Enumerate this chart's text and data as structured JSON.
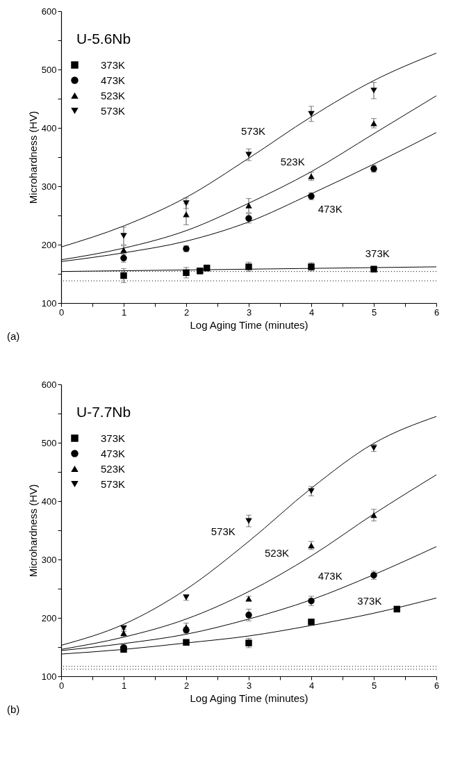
{
  "chart_data": [
    {
      "type": "scatter",
      "title": "U-5.6Nb",
      "xlabel": "Log Aging Time (minutes)",
      "ylabel": "Microhardness (HV)",
      "xlim": [
        0,
        6
      ],
      "ylim": [
        100,
        600
      ],
      "xticks": [
        0,
        {
          "value": 0.5,
          "label": null
        },
        1,
        {
          "value": 1.5,
          "label": null
        },
        2,
        {
          "value": 2.5,
          "label": null
        },
        3,
        {
          "value": 3.5,
          "label": null
        },
        4,
        {
          "value": 4.5,
          "label": null
        },
        5,
        {
          "value": 5.5,
          "label": null
        },
        6
      ],
      "yticks": [
        100,
        {
          "value": 150,
          "label": null
        },
        200,
        {
          "value": 250,
          "label": null
        },
        300,
        {
          "value": 350,
          "label": null
        },
        400,
        {
          "value": 450,
          "label": null
        },
        500,
        {
          "value": 550,
          "label": null
        },
        600
      ],
      "grid": false,
      "legend": "top left",
      "series": [
        {
          "name": "373K",
          "color": "#000000",
          "marker": "square",
          "x": [
            1,
            2,
            2.22,
            2.33,
            3,
            4,
            5
          ],
          "values": [
            147,
            152,
            155,
            160,
            162,
            162,
            158
          ],
          "errors": [
            12,
            9,
            5,
            5,
            8,
            7,
            5
          ]
        },
        {
          "name": "473K",
          "color": "#000000",
          "marker": "circle",
          "x": [
            1,
            2,
            3,
            4,
            5
          ],
          "values": [
            177,
            193,
            245,
            283,
            330
          ],
          "errors": [
            7,
            5,
            8,
            6,
            6
          ]
        },
        {
          "name": "523K",
          "color": "#000000",
          "marker": "triangle",
          "x": [
            1,
            2,
            3,
            4,
            5
          ],
          "values": [
            191,
            252,
            267,
            317,
            408
          ],
          "errors": [
            7,
            18,
            12,
            7,
            8
          ]
        },
        {
          "name": "573K",
          "color": "#000000",
          "marker": "triangle-down",
          "x": [
            1,
            2,
            3,
            4,
            5
          ],
          "values": [
            215,
            271,
            354,
            424,
            464
          ],
          "errors": [
            15,
            9,
            10,
            13,
            14
          ]
        },
        {
          "type": "line",
          "color": "#000000",
          "line_style": "solid",
          "x": [
            0,
            1,
            2,
            3,
            4,
            5,
            6
          ],
          "values": [
            196,
            232,
            281,
            348,
            419,
            481,
            528
          ]
        },
        {
          "type": "line",
          "color": "#000000",
          "line_style": "solid",
          "x": [
            0,
            1,
            2,
            3,
            4,
            5,
            6
          ],
          "values": [
            174,
            194,
            224,
            271,
            325,
            390,
            455
          ]
        },
        {
          "type": "line",
          "color": "#000000",
          "line_style": "solid",
          "x": [
            0,
            1,
            2,
            3,
            4,
            5,
            6
          ],
          "values": [
            171,
            186,
            206,
            239,
            287,
            338,
            392
          ]
        },
        {
          "type": "line",
          "color": "#000000",
          "line_style": "solid",
          "x": [
            0,
            3,
            6
          ],
          "values": [
            154,
            158,
            162
          ]
        }
      ],
      "ref_lines": [
        {
          "axis": "y",
          "value": 154,
          "line_style": "dotted",
          "color": "#000000"
        },
        {
          "axis": "y",
          "value": 138,
          "line_style": "dotted",
          "color": "#000000"
        }
      ],
      "annotations": [
        "573K",
        "523K",
        "473K",
        "373K",
        "(a)"
      ]
    },
    {
      "type": "scatter",
      "title": "U-7.7Nb",
      "xlabel": "Log Aging Time (minutes)",
      "ylabel": "Microhardness (HV)",
      "xlim": [
        0,
        6
      ],
      "ylim": [
        100,
        600
      ],
      "xticks": [
        0,
        {
          "value": 0.5,
          "label": null
        },
        1,
        {
          "value": 1.5,
          "label": null
        },
        2,
        {
          "value": 2.5,
          "label": null
        },
        3,
        {
          "value": 3.5,
          "label": null
        },
        4,
        {
          "value": 4.5,
          "label": null
        },
        5,
        {
          "value": 5.5,
          "label": null
        },
        6
      ],
      "yticks": [
        100,
        {
          "value": 150,
          "label": null
        },
        200,
        {
          "value": 250,
          "label": null
        },
        300,
        {
          "value": 350,
          "label": null
        },
        400,
        {
          "value": 450,
          "label": null
        },
        500,
        {
          "value": 550,
          "label": null
        },
        600
      ],
      "grid": false,
      "legend": "top left",
      "series": [
        {
          "name": "373K",
          "color": "#000000",
          "marker": "square",
          "x": [
            1,
            2,
            3,
            4,
            5.37
          ],
          "values": [
            146,
            158,
            157,
            193,
            215
          ],
          "errors": [
            5,
            5,
            8,
            3,
            3
          ]
        },
        {
          "name": "473K",
          "color": "#000000",
          "marker": "circle",
          "x": [
            1,
            2,
            3,
            4,
            5
          ],
          "values": [
            149,
            179,
            205,
            229,
            273
          ],
          "errors": [
            5,
            5,
            10,
            8,
            7
          ]
        },
        {
          "name": "523K",
          "color": "#000000",
          "marker": "triangle",
          "x": [
            1,
            2,
            3,
            4,
            5
          ],
          "values": [
            174,
            184,
            233,
            324,
            376
          ],
          "errors": [
            6,
            7,
            4,
            7,
            10
          ]
        },
        {
          "name": "573K",
          "color": "#000000",
          "marker": "triangle-down",
          "x": [
            1,
            2,
            3,
            4,
            5
          ],
          "values": [
            182,
            235,
            366,
            417,
            491
          ],
          "errors": [
            5,
            5,
            10,
            8,
            6
          ]
        },
        {
          "type": "line",
          "color": "#000000",
          "line_style": "solid",
          "x": [
            0,
            1,
            2,
            3,
            4,
            5,
            6
          ],
          "values": [
            153,
            189,
            249,
            331,
            422,
            499,
            545
          ]
        },
        {
          "type": "line",
          "color": "#000000",
          "line_style": "solid",
          "x": [
            0,
            1,
            2,
            3,
            4,
            5,
            6
          ],
          "values": [
            146,
            167,
            198,
            245,
            306,
            378,
            445
          ]
        },
        {
          "type": "line",
          "color": "#000000",
          "line_style": "solid",
          "x": [
            0,
            1,
            2,
            3,
            4,
            5,
            6
          ],
          "values": [
            144,
            156,
            172,
            198,
            231,
            274,
            322
          ]
        },
        {
          "type": "line",
          "color": "#000000",
          "line_style": "solid",
          "x": [
            0,
            1,
            2,
            3,
            4,
            5,
            6
          ],
          "values": [
            138,
            146,
            157,
            169,
            187,
            208,
            234
          ]
        }
      ],
      "ref_lines": [
        {
          "axis": "y",
          "value": 117,
          "line_style": "dotted",
          "color": "#000000"
        },
        {
          "axis": "y",
          "value": 112,
          "line_style": "dotted",
          "color": "#000000"
        }
      ],
      "annotations": [
        "573K",
        "523K",
        "473K",
        "373K",
        "(b)"
      ]
    }
  ]
}
